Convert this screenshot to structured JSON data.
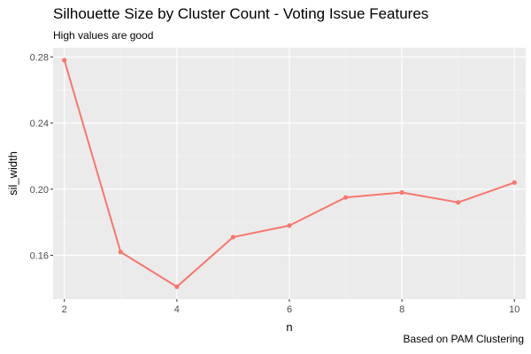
{
  "chart_data": {
    "type": "line",
    "title": "Silhouette Size by Cluster Count - Voting Issue Features",
    "subtitle": "High values are good",
    "caption": "Based on PAM Clustering",
    "xlabel": "n",
    "ylabel": "sil_width",
    "xlim": [
      1.8,
      10.2
    ],
    "ylim": [
      0.1335,
      0.2855
    ],
    "x_ticks": [
      2,
      4,
      6,
      8,
      10
    ],
    "x_tick_labels": [
      "2",
      "4",
      "6",
      "8",
      "10"
    ],
    "y_ticks": [
      0.16,
      0.2,
      0.24,
      0.28
    ],
    "y_tick_labels": [
      "0.16",
      "0.20",
      "0.24",
      "0.28"
    ],
    "grid": true,
    "series": [
      {
        "color": "#f8766d",
        "x": [
          2,
          3,
          4,
          5,
          6,
          7,
          8,
          9,
          10
        ],
        "y": [
          0.278,
          0.162,
          0.141,
          0.171,
          0.178,
          0.195,
          0.198,
          0.192,
          0.204
        ]
      }
    ]
  },
  "colors": {
    "panel_background": "#ebebeb",
    "grid_major": "#ffffff",
    "grid_minor": "#f5f5f5",
    "line": "#f8766d"
  }
}
